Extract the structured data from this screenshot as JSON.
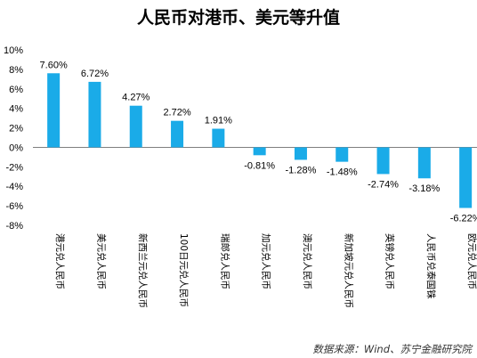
{
  "chart_data": {
    "type": "bar",
    "title": "人民币对港币、美元等升值",
    "xlabel": "",
    "ylabel": "",
    "unit": "%",
    "categories": [
      "港元兑人民币",
      "美元兑人民币",
      "新西兰元兑人民币",
      "100日元兑人民币",
      "瑞郎兑人民币",
      "加元兑人民币",
      "澳元兑人民币",
      "新加坡元兑人民币",
      "英镑兑人民币",
      "人民币兑泰国铢",
      "欧元兑人民币"
    ],
    "values": [
      7.6,
      6.72,
      4.27,
      2.72,
      1.91,
      -0.81,
      -1.28,
      -1.48,
      -2.74,
      -3.18,
      -6.22
    ],
    "data_labels": [
      "7.60%",
      "6.72%",
      "4.27%",
      "2.72%",
      "1.91%",
      "-0.81%",
      "-1.28%",
      "-1.48%",
      "-2.74%",
      "-3.18%",
      "-6.22%"
    ],
    "y_ticks": [
      10,
      8,
      6,
      4,
      2,
      0,
      -2,
      -4,
      -6,
      -8
    ],
    "y_tick_labels": [
      "10%",
      "8%",
      "6%",
      "4%",
      "2%",
      "0%",
      "-2%",
      "-4%",
      "-6%",
      "-8%"
    ],
    "ylim": [
      -8,
      10
    ],
    "grid": false,
    "legend": "none",
    "bar_color": "#1aabe8",
    "source": "数据来源：Wind、苏宁金融研究院"
  }
}
